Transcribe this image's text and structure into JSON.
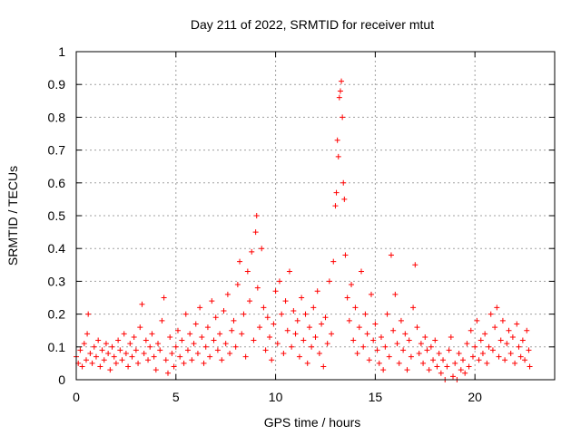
{
  "chart_data": {
    "type": "scatter",
    "title": "Day 211 of 2022, SRMTID for receiver mtut",
    "xlabel": "GPS time / hours",
    "ylabel": "SRMTID / TECUs",
    "xlim": [
      0,
      24
    ],
    "ylim": [
      0,
      1
    ],
    "x_ticks": [
      0,
      5,
      10,
      15,
      20
    ],
    "x_tick_labels": [
      "0",
      "5",
      "10",
      "15",
      "20"
    ],
    "y_ticks": [
      0,
      0.1,
      0.2,
      0.3,
      0.4,
      0.5,
      0.6,
      0.7,
      0.8,
      0.9,
      1
    ],
    "y_tick_labels": [
      "0",
      "0.1",
      "0.2",
      "0.3",
      "0.4",
      "0.5",
      "0.6",
      "0.7",
      "0.8",
      "0.9",
      "1"
    ],
    "grid": true,
    "marker": "+",
    "marker_color": "#ff0000",
    "series": [
      {
        "name": "SRMTID",
        "points": [
          [
            0.0,
            0.07
          ],
          [
            0.1,
            0.05
          ],
          [
            0.2,
            0.09
          ],
          [
            0.3,
            0.04
          ],
          [
            0.4,
            0.11
          ],
          [
            0.5,
            0.06
          ],
          [
            0.55,
            0.14
          ],
          [
            0.6,
            0.2
          ],
          [
            0.7,
            0.08
          ],
          [
            0.8,
            0.05
          ],
          [
            0.9,
            0.1
          ],
          [
            1.0,
            0.07
          ],
          [
            1.1,
            0.12
          ],
          [
            1.2,
            0.04
          ],
          [
            1.3,
            0.09
          ],
          [
            1.4,
            0.06
          ],
          [
            1.5,
            0.11
          ],
          [
            1.6,
            0.08
          ],
          [
            1.7,
            0.03
          ],
          [
            1.8,
            0.1
          ],
          [
            1.9,
            0.07
          ],
          [
            2.0,
            0.05
          ],
          [
            2.1,
            0.12
          ],
          [
            2.2,
            0.09
          ],
          [
            2.3,
            0.06
          ],
          [
            2.4,
            0.14
          ],
          [
            2.5,
            0.08
          ],
          [
            2.6,
            0.04
          ],
          [
            2.7,
            0.11
          ],
          [
            2.8,
            0.07
          ],
          [
            2.9,
            0.13
          ],
          [
            3.0,
            0.09
          ],
          [
            3.1,
            0.05
          ],
          [
            3.2,
            0.16
          ],
          [
            3.3,
            0.23
          ],
          [
            3.4,
            0.08
          ],
          [
            3.5,
            0.12
          ],
          [
            3.6,
            0.06
          ],
          [
            3.7,
            0.1
          ],
          [
            3.8,
            0.14
          ],
          [
            3.9,
            0.07
          ],
          [
            4.0,
            0.03
          ],
          [
            4.1,
            0.11
          ],
          [
            4.2,
            0.09
          ],
          [
            4.3,
            0.18
          ],
          [
            4.4,
            0.25
          ],
          [
            4.5,
            0.06
          ],
          [
            4.6,
            0.02
          ],
          [
            4.7,
            0.13
          ],
          [
            4.8,
            0.08
          ],
          [
            4.9,
            0.04
          ],
          [
            5.0,
            0.1
          ],
          [
            5.1,
            0.15
          ],
          [
            5.2,
            0.07
          ],
          [
            5.3,
            0.12
          ],
          [
            5.4,
            0.05
          ],
          [
            5.5,
            0.2
          ],
          [
            5.6,
            0.09
          ],
          [
            5.7,
            0.14
          ],
          [
            5.8,
            0.06
          ],
          [
            5.9,
            0.11
          ],
          [
            6.0,
            0.17
          ],
          [
            6.1,
            0.08
          ],
          [
            6.2,
            0.22
          ],
          [
            6.3,
            0.13
          ],
          [
            6.4,
            0.05
          ],
          [
            6.5,
            0.1
          ],
          [
            6.6,
            0.16
          ],
          [
            6.7,
            0.07
          ],
          [
            6.8,
            0.24
          ],
          [
            6.9,
            0.12
          ],
          [
            7.0,
            0.19
          ],
          [
            7.1,
            0.09
          ],
          [
            7.2,
            0.14
          ],
          [
            7.3,
            0.06
          ],
          [
            7.4,
            0.21
          ],
          [
            7.5,
            0.11
          ],
          [
            7.6,
            0.26
          ],
          [
            7.7,
            0.08
          ],
          [
            7.8,
            0.15
          ],
          [
            7.9,
            0.18
          ],
          [
            8.0,
            0.1
          ],
          [
            8.1,
            0.29
          ],
          [
            8.2,
            0.36
          ],
          [
            8.3,
            0.14
          ],
          [
            8.4,
            0.2
          ],
          [
            8.5,
            0.07
          ],
          [
            8.6,
            0.33
          ],
          [
            8.7,
            0.24
          ],
          [
            8.8,
            0.39
          ],
          [
            8.9,
            0.12
          ],
          [
            9.0,
            0.45
          ],
          [
            9.05,
            0.5
          ],
          [
            9.1,
            0.28
          ],
          [
            9.2,
            0.16
          ],
          [
            9.3,
            0.4
          ],
          [
            9.4,
            0.22
          ],
          [
            9.5,
            0.09
          ],
          [
            9.6,
            0.19
          ],
          [
            9.7,
            0.13
          ],
          [
            9.8,
            0.06
          ],
          [
            9.9,
            0.17
          ],
          [
            10.0,
            0.27
          ],
          [
            10.1,
            0.11
          ],
          [
            10.2,
            0.3
          ],
          [
            10.3,
            0.2
          ],
          [
            10.4,
            0.08
          ],
          [
            10.5,
            0.24
          ],
          [
            10.6,
            0.15
          ],
          [
            10.7,
            0.33
          ],
          [
            10.8,
            0.1
          ],
          [
            10.9,
            0.21
          ],
          [
            11.0,
            0.14
          ],
          [
            11.1,
            0.18
          ],
          [
            11.2,
            0.07
          ],
          [
            11.3,
            0.25
          ],
          [
            11.4,
            0.12
          ],
          [
            11.5,
            0.2
          ],
          [
            11.6,
            0.05
          ],
          [
            11.7,
            0.16
          ],
          [
            11.8,
            0.1
          ],
          [
            11.9,
            0.22
          ],
          [
            12.0,
            0.13
          ],
          [
            12.1,
            0.27
          ],
          [
            12.2,
            0.08
          ],
          [
            12.3,
            0.17
          ],
          [
            12.4,
            0.04
          ],
          [
            12.5,
            0.19
          ],
          [
            12.6,
            0.11
          ],
          [
            12.7,
            0.3
          ],
          [
            12.8,
            0.14
          ],
          [
            12.9,
            0.36
          ],
          [
            13.0,
            0.53
          ],
          [
            13.05,
            0.57
          ],
          [
            13.1,
            0.73
          ],
          [
            13.15,
            0.68
          ],
          [
            13.2,
            0.86
          ],
          [
            13.25,
            0.88
          ],
          [
            13.3,
            0.91
          ],
          [
            13.35,
            0.8
          ],
          [
            13.4,
            0.6
          ],
          [
            13.45,
            0.55
          ],
          [
            13.5,
            0.38
          ],
          [
            13.6,
            0.25
          ],
          [
            13.7,
            0.18
          ],
          [
            13.8,
            0.29
          ],
          [
            13.9,
            0.12
          ],
          [
            14.0,
            0.22
          ],
          [
            14.1,
            0.08
          ],
          [
            14.2,
            0.16
          ],
          [
            14.3,
            0.33
          ],
          [
            14.4,
            0.1
          ],
          [
            14.5,
            0.2
          ],
          [
            14.6,
            0.14
          ],
          [
            14.7,
            0.06
          ],
          [
            14.8,
            0.26
          ],
          [
            14.9,
            0.12
          ],
          [
            15.0,
            0.17
          ],
          [
            15.1,
            0.09
          ],
          [
            15.2,
            0.05
          ],
          [
            15.3,
            0.13
          ],
          [
            15.4,
            0.03
          ],
          [
            15.5,
            0.1
          ],
          [
            15.6,
            0.2
          ],
          [
            15.7,
            0.07
          ],
          [
            15.8,
            0.38
          ],
          [
            15.9,
            0.15
          ],
          [
            16.0,
            0.26
          ],
          [
            16.1,
            0.11
          ],
          [
            16.2,
            0.05
          ],
          [
            16.3,
            0.18
          ],
          [
            16.4,
            0.09
          ],
          [
            16.5,
            0.14
          ],
          [
            16.6,
            0.03
          ],
          [
            16.7,
            0.12
          ],
          [
            16.8,
            0.07
          ],
          [
            16.9,
            0.22
          ],
          [
            17.0,
            0.35
          ],
          [
            17.1,
            0.16
          ],
          [
            17.2,
            0.08
          ],
          [
            17.3,
            0.11
          ],
          [
            17.4,
            0.05
          ],
          [
            17.5,
            0.13
          ],
          [
            17.6,
            0.09
          ],
          [
            17.7,
            0.03
          ],
          [
            17.8,
            0.1
          ],
          [
            17.9,
            0.06
          ],
          [
            18.0,
            0.12
          ],
          [
            18.1,
            0.04
          ],
          [
            18.2,
            0.08
          ],
          [
            18.3,
            0.02
          ],
          [
            18.4,
            0.06
          ],
          [
            18.5,
            0.0
          ],
          [
            18.6,
            0.04
          ],
          [
            18.7,
            0.09
          ],
          [
            18.8,
            0.13
          ],
          [
            18.9,
            0.01
          ],
          [
            19.0,
            0.05
          ],
          [
            19.1,
            0.0
          ],
          [
            19.2,
            0.08
          ],
          [
            19.3,
            0.03
          ],
          [
            19.4,
            0.06
          ],
          [
            19.5,
            0.02
          ],
          [
            19.6,
            0.11
          ],
          [
            19.7,
            0.04
          ],
          [
            19.8,
            0.15
          ],
          [
            19.9,
            0.07
          ],
          [
            20.0,
            0.1
          ],
          [
            20.1,
            0.18
          ],
          [
            20.2,
            0.06
          ],
          [
            20.3,
            0.12
          ],
          [
            20.4,
            0.08
          ],
          [
            20.5,
            0.14
          ],
          [
            20.6,
            0.05
          ],
          [
            20.7,
            0.1
          ],
          [
            20.8,
            0.2
          ],
          [
            20.9,
            0.09
          ],
          [
            21.0,
            0.16
          ],
          [
            21.1,
            0.22
          ],
          [
            21.2,
            0.07
          ],
          [
            21.3,
            0.12
          ],
          [
            21.4,
            0.18
          ],
          [
            21.5,
            0.06
          ],
          [
            21.6,
            0.11
          ],
          [
            21.7,
            0.15
          ],
          [
            21.8,
            0.08
          ],
          [
            21.9,
            0.13
          ],
          [
            22.0,
            0.05
          ],
          [
            22.1,
            0.17
          ],
          [
            22.2,
            0.1
          ],
          [
            22.3,
            0.07
          ],
          [
            22.4,
            0.12
          ],
          [
            22.5,
            0.06
          ],
          [
            22.6,
            0.15
          ],
          [
            22.7,
            0.09
          ],
          [
            22.75,
            0.04
          ]
        ]
      }
    ]
  }
}
